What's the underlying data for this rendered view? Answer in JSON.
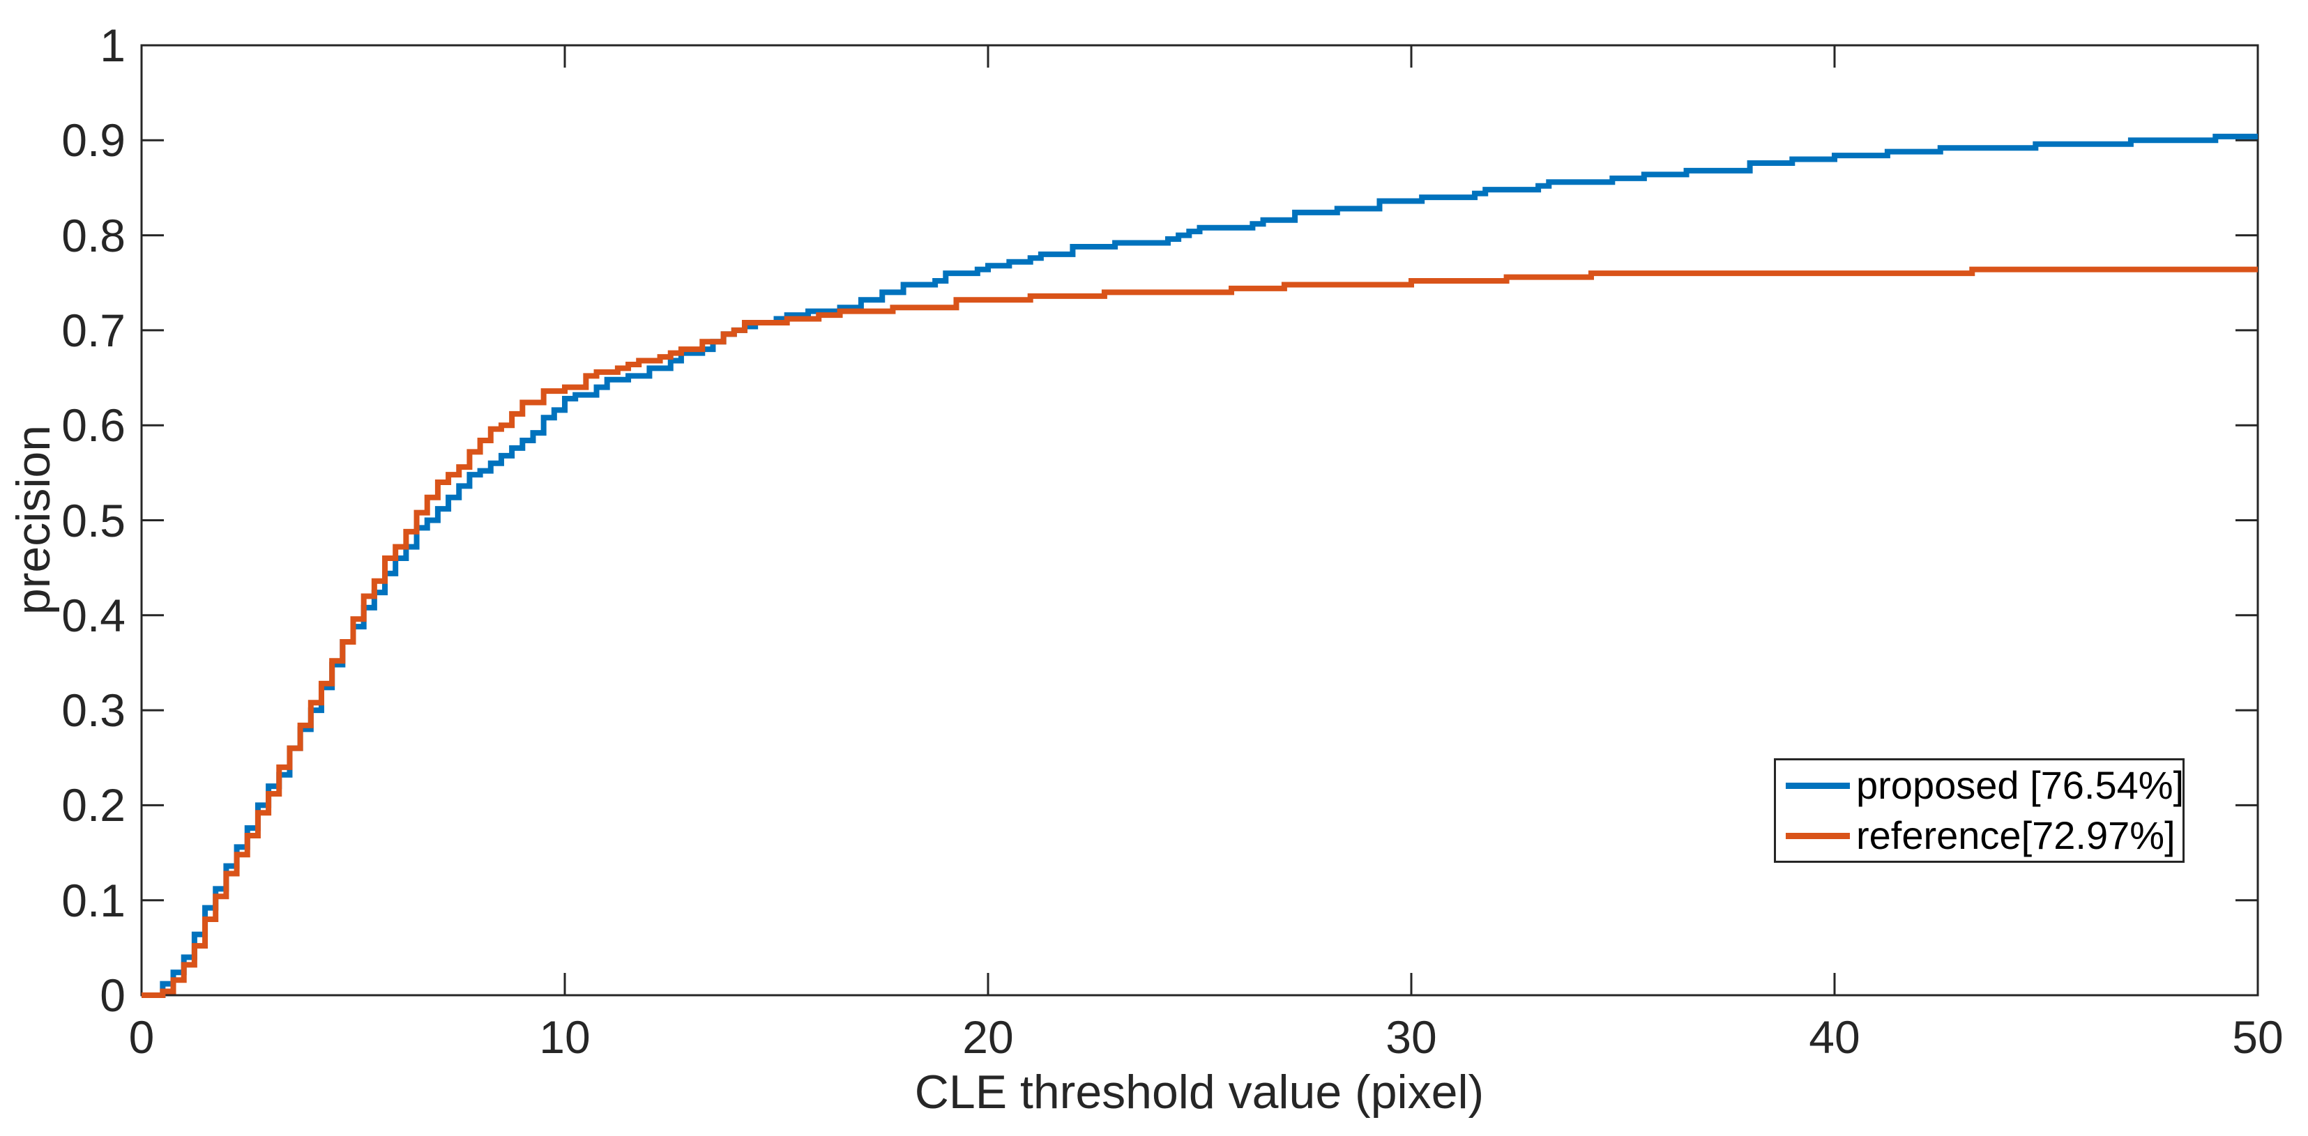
{
  "figure": {
    "background": "#ffffff",
    "axis_color": "#262626"
  },
  "legend": {
    "position": "southeast",
    "border_color": "#262626",
    "entries": [
      {
        "label": "proposed [76.54%]",
        "color": "#0072BD"
      },
      {
        "label": "reference[72.97%]",
        "color": "#D95319"
      }
    ]
  },
  "chart_data": {
    "type": "line",
    "style": "staircase precision plot",
    "title": "",
    "xlabel": "CLE threshold value (pixel)",
    "ylabel": "precision",
    "xlim": [
      0,
      50
    ],
    "ylim": [
      0,
      1
    ],
    "grid": false,
    "box": true,
    "tick_direction": "in",
    "legend_position": "southeast",
    "xticks": [
      {
        "v": 0,
        "label": "0"
      },
      {
        "v": 10,
        "label": "10"
      },
      {
        "v": 20,
        "label": "20"
      },
      {
        "v": 30,
        "label": "30"
      },
      {
        "v": 40,
        "label": "40"
      },
      {
        "v": 50,
        "label": "50"
      }
    ],
    "yticks": [
      {
        "v": 0,
        "label": "0"
      },
      {
        "v": 0.1,
        "label": "0.1"
      },
      {
        "v": 0.2,
        "label": "0.2"
      },
      {
        "v": 0.3,
        "label": "0.3"
      },
      {
        "v": 0.4,
        "label": "0.4"
      },
      {
        "v": 0.5,
        "label": "0.5"
      },
      {
        "v": 0.6,
        "label": "0.6"
      },
      {
        "v": 0.7,
        "label": "0.7"
      },
      {
        "v": 0.8,
        "label": "0.8"
      },
      {
        "v": 0.9,
        "label": "0.9"
      },
      {
        "v": 1,
        "label": "1"
      }
    ],
    "series": [
      {
        "name": "proposed [76.54%]",
        "color": "#0072BD",
        "points": [
          [
            0,
            0
          ],
          [
            0.3,
            0
          ],
          [
            0.5,
            0.01
          ],
          [
            0.75,
            0.025
          ],
          [
            1,
            0.04
          ],
          [
            1.25,
            0.065
          ],
          [
            1.5,
            0.09
          ],
          [
            1.75,
            0.115
          ],
          [
            2,
            0.135
          ],
          [
            2.25,
            0.155
          ],
          [
            2.5,
            0.175
          ],
          [
            2.75,
            0.195
          ],
          [
            3,
            0.215
          ],
          [
            3.25,
            0.235
          ],
          [
            3.5,
            0.26
          ],
          [
            3.75,
            0.28
          ],
          [
            4,
            0.3
          ],
          [
            4.25,
            0.325
          ],
          [
            4.5,
            0.35
          ],
          [
            4.75,
            0.37
          ],
          [
            5,
            0.39
          ],
          [
            5.5,
            0.425
          ],
          [
            6,
            0.46
          ],
          [
            6.5,
            0.49
          ],
          [
            7,
            0.515
          ],
          [
            7.5,
            0.532
          ],
          [
            8,
            0.555
          ],
          [
            8.5,
            0.57
          ],
          [
            9,
            0.585
          ],
          [
            9.5,
            0.605
          ],
          [
            10,
            0.625
          ],
          [
            10.5,
            0.632
          ],
          [
            11,
            0.645
          ],
          [
            11.5,
            0.652
          ],
          [
            12,
            0.658
          ],
          [
            12.5,
            0.668
          ],
          [
            13,
            0.68
          ],
          [
            13.5,
            0.69
          ],
          [
            14,
            0.7
          ],
          [
            14.5,
            0.706
          ],
          [
            15,
            0.71
          ],
          [
            16,
            0.72
          ],
          [
            17,
            0.732
          ],
          [
            18,
            0.744
          ],
          [
            19,
            0.755
          ],
          [
            20,
            0.765
          ],
          [
            21,
            0.775
          ],
          [
            22,
            0.784
          ],
          [
            23,
            0.79
          ],
          [
            24,
            0.795
          ],
          [
            25,
            0.803
          ],
          [
            26,
            0.81
          ],
          [
            27,
            0.818
          ],
          [
            28,
            0.824
          ],
          [
            29,
            0.83
          ],
          [
            30,
            0.836
          ],
          [
            31,
            0.841
          ],
          [
            32,
            0.846
          ],
          [
            33,
            0.852
          ],
          [
            34,
            0.856
          ],
          [
            35,
            0.859
          ],
          [
            36,
            0.863
          ],
          [
            37,
            0.868
          ],
          [
            38,
            0.873
          ],
          [
            39,
            0.877
          ],
          [
            40,
            0.881
          ],
          [
            41,
            0.884
          ],
          [
            42,
            0.887
          ],
          [
            43,
            0.889
          ],
          [
            44,
            0.891
          ],
          [
            45,
            0.893
          ],
          [
            46,
            0.895
          ],
          [
            47,
            0.897
          ],
          [
            48,
            0.899
          ],
          [
            49,
            0.9
          ],
          [
            50,
            0.902
          ]
        ]
      },
      {
        "name": "reference[72.97%]",
        "color": "#D95319",
        "points": [
          [
            0,
            0
          ],
          [
            0.4,
            0
          ],
          [
            0.6,
            0.008
          ],
          [
            0.8,
            0.02
          ],
          [
            1,
            0.032
          ],
          [
            1.25,
            0.055
          ],
          [
            1.5,
            0.08
          ],
          [
            1.75,
            0.105
          ],
          [
            2,
            0.125
          ],
          [
            2.25,
            0.15
          ],
          [
            2.5,
            0.17
          ],
          [
            2.75,
            0.19
          ],
          [
            3,
            0.215
          ],
          [
            3.25,
            0.24
          ],
          [
            3.5,
            0.262
          ],
          [
            3.75,
            0.285
          ],
          [
            4,
            0.308
          ],
          [
            4.25,
            0.33
          ],
          [
            4.5,
            0.352
          ],
          [
            4.75,
            0.375
          ],
          [
            5,
            0.398
          ],
          [
            5.5,
            0.438
          ],
          [
            6,
            0.475
          ],
          [
            6.5,
            0.508
          ],
          [
            7,
            0.538
          ],
          [
            7.5,
            0.555
          ],
          [
            8,
            0.585
          ],
          [
            8.5,
            0.605
          ],
          [
            9,
            0.623
          ],
          [
            9.5,
            0.633
          ],
          [
            10,
            0.64
          ],
          [
            10.5,
            0.648
          ],
          [
            11,
            0.656
          ],
          [
            11.5,
            0.663
          ],
          [
            12,
            0.67
          ],
          [
            12.5,
            0.677
          ],
          [
            13,
            0.684
          ],
          [
            13.5,
            0.692
          ],
          [
            14,
            0.7
          ],
          [
            14.5,
            0.705
          ],
          [
            15,
            0.708
          ],
          [
            16,
            0.713
          ],
          [
            17,
            0.718
          ],
          [
            18,
            0.722
          ],
          [
            19,
            0.726
          ],
          [
            20,
            0.73
          ],
          [
            21,
            0.732
          ],
          [
            22,
            0.734
          ],
          [
            23,
            0.736
          ],
          [
            24,
            0.738
          ],
          [
            25,
            0.739
          ],
          [
            26,
            0.741
          ],
          [
            27,
            0.743
          ],
          [
            28,
            0.744
          ],
          [
            29,
            0.746
          ],
          [
            30,
            0.749
          ],
          [
            31,
            0.75
          ],
          [
            32,
            0.752
          ],
          [
            33,
            0.754
          ],
          [
            34,
            0.754
          ],
          [
            35,
            0.755
          ],
          [
            36,
            0.756
          ],
          [
            37,
            0.756
          ],
          [
            38,
            0.757
          ],
          [
            39,
            0.757
          ],
          [
            40,
            0.758
          ],
          [
            41,
            0.758
          ],
          [
            42,
            0.758
          ],
          [
            43,
            0.759
          ],
          [
            44,
            0.759
          ],
          [
            45,
            0.76
          ],
          [
            46,
            0.76
          ],
          [
            47,
            0.76
          ],
          [
            48,
            0.76
          ],
          [
            49,
            0.761
          ],
          [
            50,
            0.761
          ]
        ]
      }
    ]
  }
}
